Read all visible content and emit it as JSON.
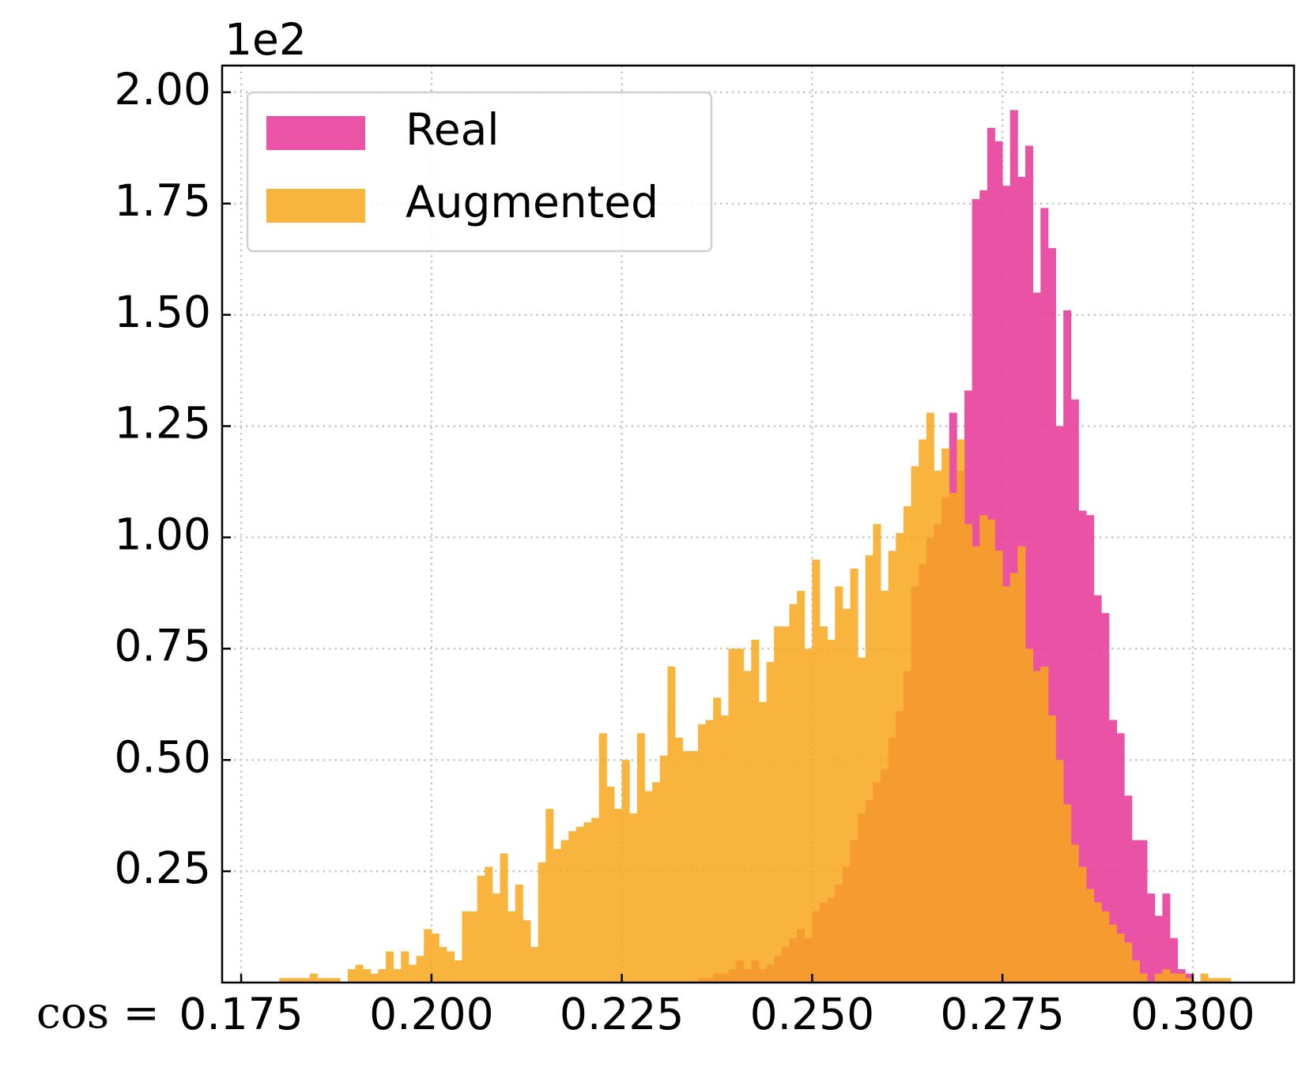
{
  "chart_data": {
    "type": "histogram",
    "y_offset_label": "1e2",
    "xlabel": "cos =",
    "bins": [
      0.178,
      0.179,
      0.18,
      0.181,
      0.182,
      0.183,
      0.184,
      0.185,
      0.186,
      0.187,
      0.188,
      0.189,
      0.19,
      0.191,
      0.192,
      0.193,
      0.194,
      0.195,
      0.196,
      0.197,
      0.198,
      0.199,
      0.2,
      0.201,
      0.202,
      0.203,
      0.204,
      0.205,
      0.206,
      0.207,
      0.208,
      0.209,
      0.21,
      0.211,
      0.212,
      0.213,
      0.214,
      0.215,
      0.216,
      0.217,
      0.218,
      0.219,
      0.22,
      0.221,
      0.222,
      0.223,
      0.224,
      0.225,
      0.226,
      0.227,
      0.228,
      0.229,
      0.23,
      0.231,
      0.232,
      0.233,
      0.234,
      0.235,
      0.236,
      0.237,
      0.238,
      0.239,
      0.24,
      0.241,
      0.242,
      0.243,
      0.244,
      0.245,
      0.246,
      0.247,
      0.248,
      0.249,
      0.25,
      0.251,
      0.252,
      0.253,
      0.254,
      0.255,
      0.256,
      0.257,
      0.258,
      0.259,
      0.26,
      0.261,
      0.262,
      0.263,
      0.264,
      0.265,
      0.266,
      0.267,
      0.268,
      0.269,
      0.27,
      0.271,
      0.272,
      0.273,
      0.274,
      0.275,
      0.276,
      0.277,
      0.278,
      0.279,
      0.28,
      0.281,
      0.282,
      0.283,
      0.284,
      0.285,
      0.286,
      0.287,
      0.288,
      0.289,
      0.29,
      0.291,
      0.292,
      0.293,
      0.294,
      0.295,
      0.296,
      0.297,
      0.298,
      0.299,
      0.3,
      0.301,
      0.302,
      0.303,
      0.304,
      0.305,
      0.306,
      0.307
    ],
    "series": [
      {
        "name": "Real",
        "color": "#e8409c",
        "alpha": 0.9,
        "values": [
          0,
          0,
          0,
          0,
          0,
          0,
          0,
          0,
          0,
          0,
          0,
          0,
          0,
          0,
          0,
          0,
          0,
          0,
          0,
          0,
          0,
          0,
          0,
          0,
          0,
          0,
          0,
          0,
          0,
          0,
          0,
          0,
          0,
          0,
          0,
          0,
          0,
          0,
          0,
          0,
          0,
          0,
          0,
          0,
          0,
          0,
          0,
          0,
          0,
          0,
          0,
          0,
          0,
          0,
          0,
          0,
          0,
          0.01,
          0.01,
          0.02,
          0.02,
          0.03,
          0.05,
          0.03,
          0.05,
          0.03,
          0.04,
          0.06,
          0.08,
          0.1,
          0.12,
          0.1,
          0.16,
          0.18,
          0.19,
          0.22,
          0.26,
          0.32,
          0.38,
          0.41,
          0.45,
          0.48,
          0.55,
          0.61,
          0.7,
          0.89,
          0.94,
          1.0,
          1.03,
          1.09,
          1.28,
          1.15,
          1.33,
          1.76,
          1.78,
          1.92,
          1.89,
          1.79,
          1.96,
          1.81,
          1.88,
          1.55,
          1.74,
          1.65,
          1.25,
          1.51,
          1.31,
          1.06,
          1.05,
          0.87,
          0.83,
          0.59,
          0.56,
          0.42,
          0.32,
          0.32,
          0.2,
          0.15,
          0.2,
          0.1,
          0.03,
          0.02,
          0,
          0,
          0,
          0,
          0,
          0,
          0
        ]
      },
      {
        "name": "Augmented",
        "color": "#f7a81b",
        "alpha": 0.85,
        "values": [
          0,
          0,
          0.01,
          0.01,
          0.01,
          0.01,
          0.02,
          0.01,
          0.01,
          0.01,
          0,
          0.03,
          0.04,
          0.03,
          0.02,
          0.03,
          0.07,
          0.03,
          0.07,
          0.04,
          0.06,
          0.12,
          0.11,
          0.08,
          0.07,
          0.05,
          0.16,
          0.16,
          0.24,
          0.26,
          0.2,
          0.29,
          0.16,
          0.22,
          0.14,
          0.08,
          0.27,
          0.39,
          0.3,
          0.32,
          0.34,
          0.35,
          0.36,
          0.37,
          0.56,
          0.44,
          0.39,
          0.5,
          0.38,
          0.56,
          0.43,
          0.45,
          0.51,
          0.71,
          0.55,
          0.52,
          0.52,
          0.58,
          0.59,
          0.64,
          0.6,
          0.75,
          0.75,
          0.7,
          0.77,
          0.63,
          0.72,
          0.8,
          0.8,
          0.85,
          0.88,
          0.75,
          0.95,
          0.8,
          0.77,
          0.89,
          0.84,
          0.93,
          0.73,
          0.96,
          1.03,
          0.88,
          0.97,
          1.01,
          1.07,
          1.16,
          1.22,
          1.28,
          1.15,
          1.2,
          1.1,
          1.22,
          1.03,
          0.98,
          1.05,
          1.04,
          0.97,
          0.89,
          0.92,
          0.98,
          0.75,
          0.7,
          0.71,
          0.6,
          0.5,
          0.4,
          0.31,
          0.26,
          0.21,
          0.18,
          0.16,
          0.13,
          0.11,
          0.09,
          0.05,
          0.02,
          0,
          0.02,
          0.03,
          0.02,
          0.02,
          0.01,
          0,
          0.02,
          0.01,
          0.01,
          0.01,
          0,
          0
        ]
      }
    ],
    "xlim": [
      0.1725,
      0.3133
    ],
    "ylim": [
      0,
      2.06
    ],
    "xticks": [
      0.175,
      {
        "value": 0.2,
        "label": "0.200"
      },
      0.225,
      {
        "value": 0.25,
        "label": "0.250"
      },
      0.275,
      {
        "value": 0.3,
        "label": "0.300"
      }
    ],
    "yticks": [
      0.25,
      {
        "value": 0.5,
        "label": "0.50"
      },
      0.75,
      {
        "value": 1,
        "label": "1.00"
      },
      1.25,
      {
        "value": 1.5,
        "label": "1.50"
      },
      1.75,
      {
        "value": 2,
        "label": "2.00"
      }
    ],
    "grid": true,
    "legend": "upper left"
  }
}
